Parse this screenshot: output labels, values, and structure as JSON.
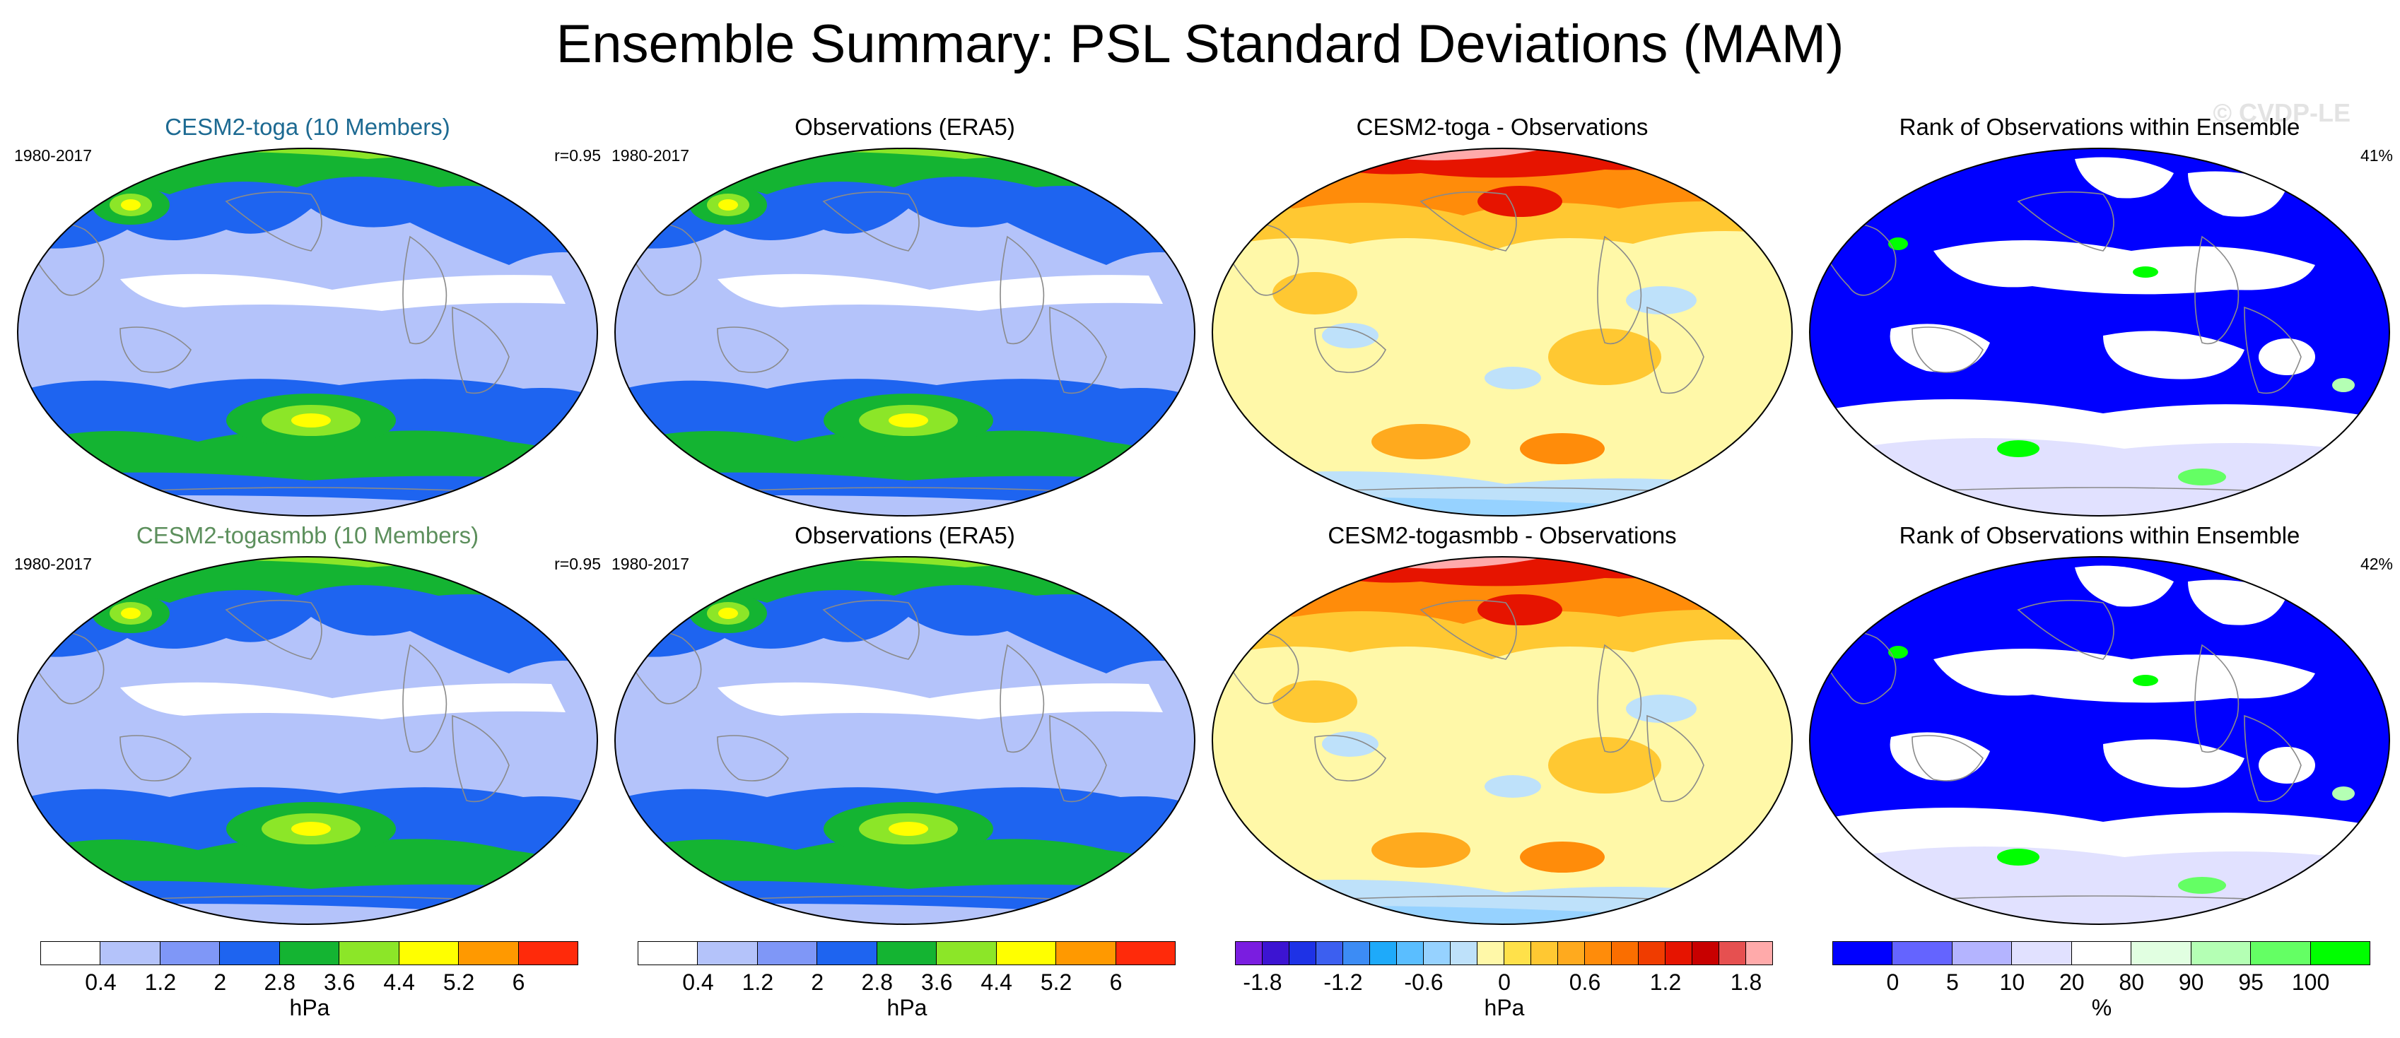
{
  "title": "Ensemble Summary: PSL Standard Deviations (MAM)",
  "watermark": "© CVDP-LE",
  "colors": {
    "sd_palette": [
      "#ffffff",
      "#b4c3fa",
      "#7f97f7",
      "#1e64f0",
      "#14b432",
      "#8ce628",
      "#ffff00",
      "#ff9900",
      "#ff2a0a"
    ],
    "diff_palette": [
      "#7a1de0",
      "#3c14d2",
      "#1e32e6",
      "#3c5ff0",
      "#3c8cf5",
      "#1eaafa",
      "#5abeff",
      "#96d2ff",
      "#bee1fa",
      "#fff8a8",
      "#ffe14a",
      "#ffc832",
      "#ffaa1e",
      "#ff8c0a",
      "#fa6e00",
      "#f03c00",
      "#e61400",
      "#c80000",
      "#e65050",
      "#ffaaaa"
    ],
    "rank_palette": [
      "#0000ff",
      "#6464ff",
      "#b4b4ff",
      "#e1e1ff",
      "#ffffff",
      "#e1ffe1",
      "#b4ffb4",
      "#64ff64",
      "#00ff00"
    ]
  },
  "panels": [
    {
      "title": "CESM2-toga (10 Members)",
      "title_color": "#1d6a92",
      "left_label": "1980-2017",
      "right_label": "r=0.95",
      "kind": "sd"
    },
    {
      "title": "Observations (ERA5)",
      "title_color": "#000000",
      "left_label": "1980-2017",
      "right_label": "",
      "kind": "sd"
    },
    {
      "title": "CESM2-toga - Observations",
      "title_color": "#000000",
      "left_label": "",
      "right_label": "",
      "kind": "diff"
    },
    {
      "title": "Rank of Observations within Ensemble",
      "title_color": "#000000",
      "left_label": "",
      "right_label": "41%",
      "kind": "rank"
    },
    {
      "title": "CESM2-togasmbb (10 Members)",
      "title_color": "#5c8f5c",
      "left_label": "1980-2017",
      "right_label": "r=0.95",
      "kind": "sd"
    },
    {
      "title": "Observations (ERA5)",
      "title_color": "#000000",
      "left_label": "1980-2017",
      "right_label": "",
      "kind": "sd"
    },
    {
      "title": "CESM2-togasmbb - Observations",
      "title_color": "#000000",
      "left_label": "",
      "right_label": "",
      "kind": "diff"
    },
    {
      "title": "Rank of Observations within Ensemble",
      "title_color": "#000000",
      "left_label": "",
      "right_label": "42%",
      "kind": "rank"
    }
  ],
  "colorbars": [
    {
      "palette": "sd_palette",
      "labels": [
        "0.4",
        "1.2",
        "2",
        "2.8",
        "3.6",
        "4.4",
        "5.2",
        "6"
      ],
      "label_positions": [
        1,
        2,
        3,
        4,
        5,
        6,
        7,
        8
      ],
      "units": "hPa"
    },
    {
      "palette": "sd_palette",
      "labels": [
        "0.4",
        "1.2",
        "2",
        "2.8",
        "3.6",
        "4.4",
        "5.2",
        "6"
      ],
      "label_positions": [
        1,
        2,
        3,
        4,
        5,
        6,
        7,
        8
      ],
      "units": "hPa"
    },
    {
      "palette": "diff_palette",
      "labels": [
        "-1.8",
        "-1.2",
        "-0.6",
        "0",
        "0.6",
        "1.2",
        "1.8"
      ],
      "label_positions": [
        1,
        4,
        7,
        10,
        13,
        16,
        19
      ],
      "units": "hPa"
    },
    {
      "palette": "rank_palette",
      "labels": [
        "0",
        "5",
        "10",
        "20",
        "80",
        "90",
        "95",
        "100"
      ],
      "label_positions": [
        1,
        2,
        3,
        4,
        5,
        6,
        7,
        8
      ],
      "units": "%"
    }
  ],
  "chart_data": {
    "type": "heatmap",
    "title": "Ensemble Summary: PSL Standard Deviations (MAM)",
    "variable": "PSL",
    "season": "MAM",
    "period": "1980-2017",
    "panels": [
      {
        "model": "CESM2-toga (10 Members)",
        "quantity": "standard deviation",
        "units": "hPa",
        "pattern_correlation": 0.95
      },
      {
        "model": "Observations (ERA5)",
        "quantity": "standard deviation",
        "units": "hPa"
      },
      {
        "model": "CESM2-toga - Observations",
        "quantity": "difference",
        "units": "hPa"
      },
      {
        "model": "Rank of Observations within Ensemble",
        "quantity": "rank",
        "units": "%",
        "summary": "41%"
      },
      {
        "model": "CESM2-togasmbb (10 Members)",
        "quantity": "standard deviation",
        "units": "hPa",
        "pattern_correlation": 0.95
      },
      {
        "model": "Observations (ERA5)",
        "quantity": "standard deviation",
        "units": "hPa"
      },
      {
        "model": "CESM2-togasmbb - Observations",
        "quantity": "difference",
        "units": "hPa"
      },
      {
        "model": "Rank of Observations within Ensemble",
        "quantity": "rank",
        "units": "%",
        "summary": "42%"
      }
    ],
    "sd_levels": [
      0.4,
      1.2,
      2,
      2.8,
      3.6,
      4.4,
      5.2,
      6
    ],
    "diff_levels": [
      -1.8,
      -1.2,
      -0.6,
      0,
      0.6,
      1.2,
      1.8
    ],
    "rank_levels": [
      0,
      5,
      10,
      20,
      80,
      90,
      95,
      100
    ]
  }
}
